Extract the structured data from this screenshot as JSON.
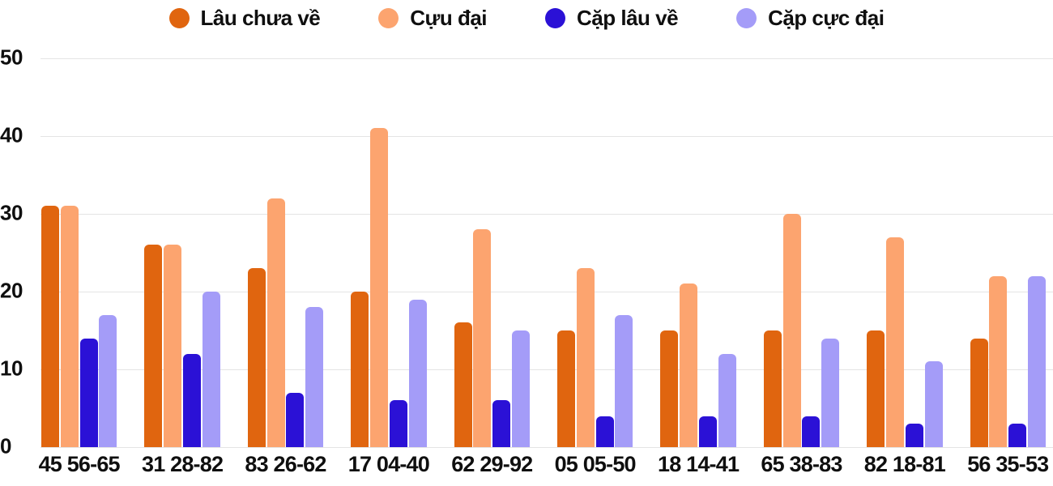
{
  "chart_data": {
    "type": "bar",
    "title": "",
    "xlabel": "",
    "ylabel": "",
    "ylim": [
      0,
      50
    ],
    "yticks": [
      0,
      10,
      20,
      30,
      40,
      50
    ],
    "grid": true,
    "legend_position": "top-center",
    "categories": [
      "45 56-65",
      "31 28-82",
      "83 26-62",
      "17 04-40",
      "62 29-92",
      "05 05-50",
      "18 14-41",
      "65 38-83",
      "82 18-81",
      "56 35-53"
    ],
    "series": [
      {
        "name": "Lâu chưa về",
        "color": "#e0650f",
        "values": [
          31,
          26,
          23,
          20,
          16,
          15,
          15,
          15,
          15,
          14
        ]
      },
      {
        "name": "Cựu đại",
        "color": "#fca46f",
        "values": [
          31,
          26,
          32,
          41,
          28,
          23,
          21,
          30,
          27,
          22
        ]
      },
      {
        "name": "Cặp lâu về",
        "color": "#2b11d6",
        "values": [
          14,
          12,
          7,
          6,
          6,
          4,
          4,
          4,
          3,
          3
        ]
      },
      {
        "name": "Cặp cực đại",
        "color": "#a49cf8",
        "values": [
          17,
          20,
          18,
          19,
          15,
          17,
          12,
          14,
          11,
          22
        ]
      }
    ]
  },
  "colors": {
    "background": "#ffffff",
    "text": "#0f0f0f",
    "gridline": "#e4e4e4"
  }
}
